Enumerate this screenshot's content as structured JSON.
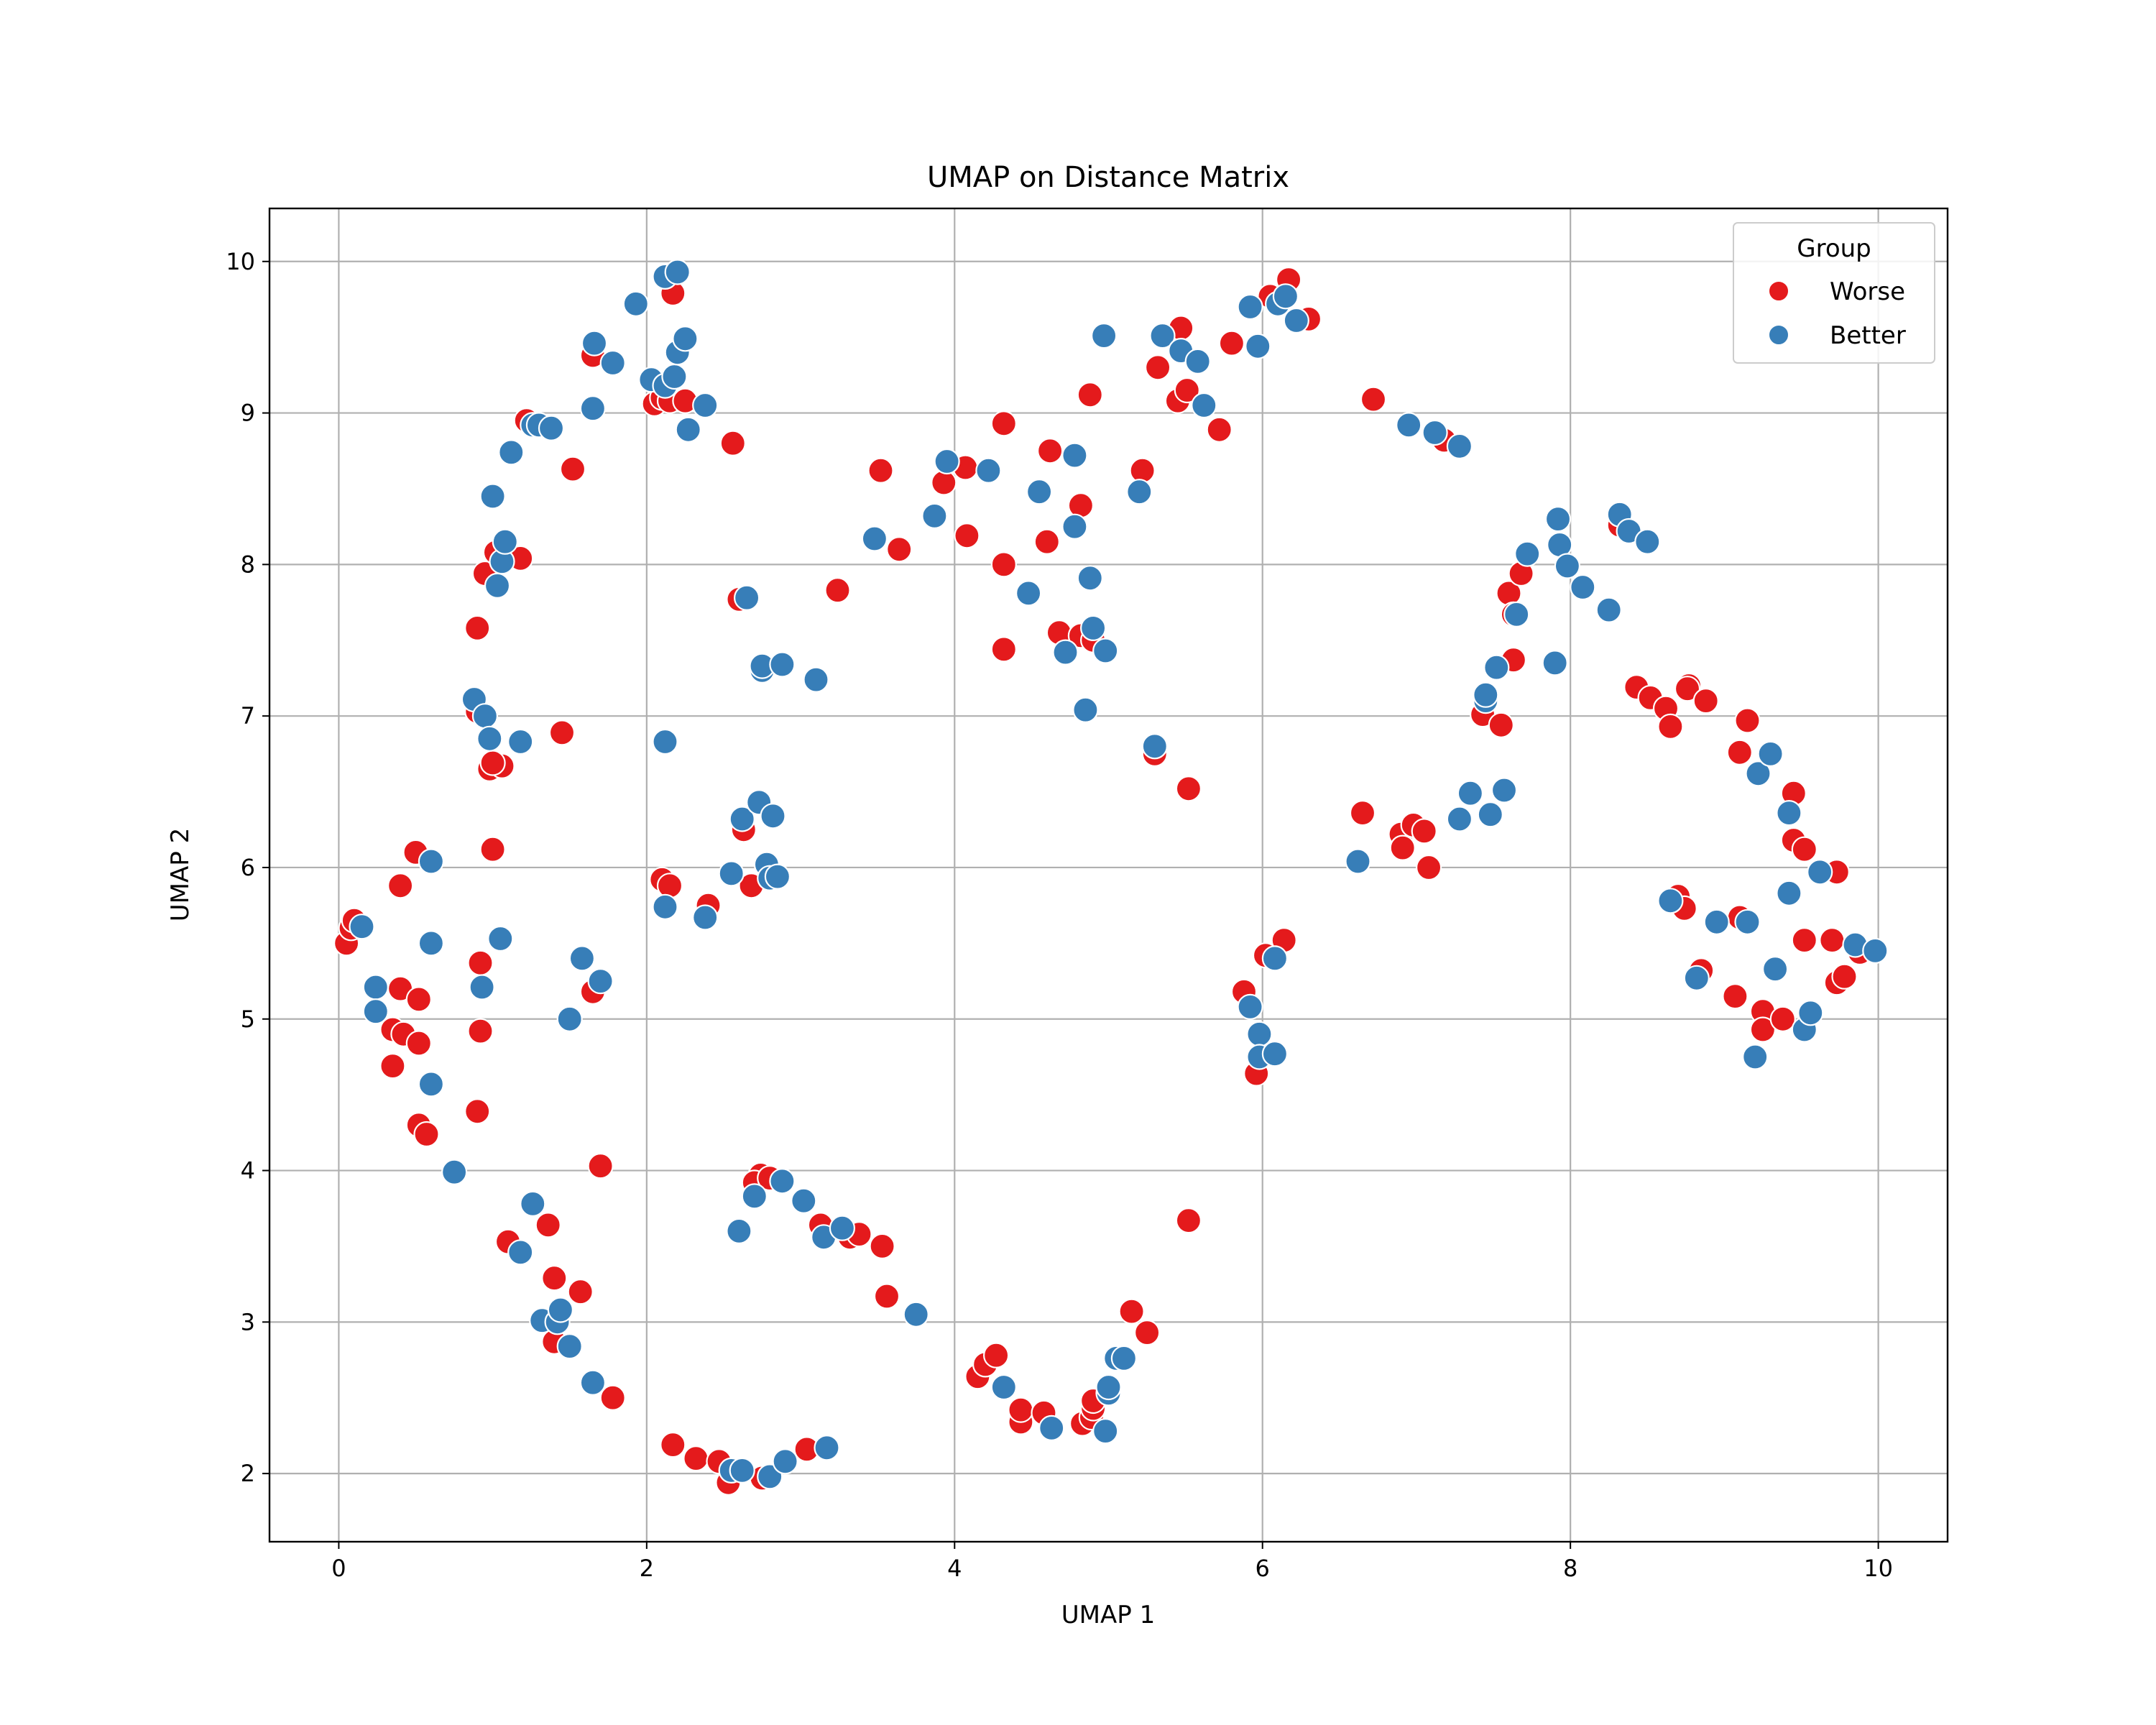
{
  "chart_data": {
    "type": "scatter",
    "title": "UMAP on Distance Matrix",
    "xlabel": "UMAP 1",
    "ylabel": "UMAP 2",
    "xlim": [
      -0.45,
      10.45
    ],
    "ylim": [
      1.55,
      10.35
    ],
    "xticks": [
      0,
      2,
      4,
      6,
      8,
      10
    ],
    "yticks": [
      2,
      3,
      4,
      5,
      6,
      7,
      8,
      9,
      10
    ],
    "grid": true,
    "legend": {
      "title": "Group",
      "position": "top-right"
    },
    "series": [
      {
        "name": "Worse",
        "color": "#e41a1c",
        "points": [
          [
            0.05,
            5.5
          ],
          [
            0.08,
            5.6
          ],
          [
            0.1,
            5.65
          ],
          [
            0.4,
            5.88
          ],
          [
            0.5,
            6.1
          ],
          [
            0.4,
            5.2
          ],
          [
            0.52,
            5.13
          ],
          [
            0.35,
            4.93
          ],
          [
            0.42,
            4.9
          ],
          [
            0.52,
            4.84
          ],
          [
            0.35,
            4.69
          ],
          [
            0.52,
            4.3
          ],
          [
            0.57,
            4.24
          ],
          [
            0.92,
            5.37
          ],
          [
            0.92,
            4.92
          ],
          [
            0.9,
            4.39
          ],
          [
            1.0,
            6.12
          ],
          [
            0.98,
            6.65
          ],
          [
            1.06,
            6.67
          ],
          [
            1.0,
            6.69
          ],
          [
            0.9,
            7.03
          ],
          [
            0.9,
            7.58
          ],
          [
            0.95,
            7.94
          ],
          [
            1.02,
            8.08
          ],
          [
            1.18,
            8.04
          ],
          [
            1.22,
            8.95
          ],
          [
            1.52,
            8.63
          ],
          [
            1.45,
            6.89
          ],
          [
            1.65,
            5.18
          ],
          [
            1.7,
            4.03
          ],
          [
            1.1,
            3.53
          ],
          [
            1.36,
            3.64
          ],
          [
            1.4,
            3.29
          ],
          [
            1.57,
            3.2
          ],
          [
            1.4,
            2.87
          ],
          [
            1.78,
            2.5
          ],
          [
            1.65,
            9.38
          ],
          [
            2.05,
            9.06
          ],
          [
            2.1,
            9.1
          ],
          [
            2.15,
            9.08
          ],
          [
            2.25,
            9.08
          ],
          [
            2.17,
            9.79
          ],
          [
            2.56,
            8.8
          ],
          [
            2.1,
            5.92
          ],
          [
            2.15,
            5.88
          ],
          [
            2.4,
            5.75
          ],
          [
            2.63,
            6.25
          ],
          [
            2.68,
            5.88
          ],
          [
            2.74,
            3.97
          ],
          [
            2.7,
            3.92
          ],
          [
            2.8,
            3.95
          ],
          [
            2.6,
            7.77
          ],
          [
            3.24,
            7.83
          ],
          [
            3.52,
            8.62
          ],
          [
            3.64,
            8.1
          ],
          [
            3.13,
            3.64
          ],
          [
            3.32,
            3.56
          ],
          [
            3.38,
            3.58
          ],
          [
            3.53,
            3.5
          ],
          [
            3.56,
            3.17
          ],
          [
            2.17,
            2.19
          ],
          [
            2.32,
            2.1
          ],
          [
            2.47,
            2.08
          ],
          [
            2.53,
            1.94
          ],
          [
            2.75,
            1.97
          ],
          [
            3.04,
            2.16
          ],
          [
            3.93,
            8.54
          ],
          [
            4.08,
            8.19
          ],
          [
            4.07,
            8.64
          ],
          [
            4.32,
            8.93
          ],
          [
            4.32,
            8.0
          ],
          [
            4.32,
            7.44
          ],
          [
            4.62,
            8.75
          ],
          [
            4.6,
            8.15
          ],
          [
            4.68,
            7.55
          ],
          [
            4.82,
            8.39
          ],
          [
            4.82,
            7.53
          ],
          [
            4.88,
            9.12
          ],
          [
            4.9,
            7.5
          ],
          [
            5.22,
            8.62
          ],
          [
            4.15,
            2.64
          ],
          [
            4.2,
            2.72
          ],
          [
            4.27,
            2.78
          ],
          [
            4.43,
            2.34
          ],
          [
            4.43,
            2.42
          ],
          [
            4.58,
            2.4
          ],
          [
            4.83,
            2.33
          ],
          [
            4.89,
            2.37
          ],
          [
            4.9,
            2.43
          ],
          [
            4.9,
            2.48
          ],
          [
            5.15,
            3.07
          ],
          [
            5.25,
            2.93
          ],
          [
            5.3,
            6.75
          ],
          [
            5.52,
            6.52
          ],
          [
            5.52,
            3.67
          ],
          [
            5.32,
            9.3
          ],
          [
            5.47,
            9.56
          ],
          [
            5.45,
            9.08
          ],
          [
            5.51,
            9.15
          ],
          [
            5.72,
            8.89
          ],
          [
            5.8,
            9.46
          ],
          [
            6.05,
            9.77
          ],
          [
            6.17,
            9.88
          ],
          [
            6.3,
            9.62
          ],
          [
            5.88,
            5.18
          ],
          [
            5.96,
            4.64
          ],
          [
            6.02,
            5.42
          ],
          [
            6.14,
            5.52
          ],
          [
            6.65,
            6.36
          ],
          [
            6.72,
            9.09
          ],
          [
            6.9,
            6.22
          ],
          [
            6.91,
            6.13
          ],
          [
            6.98,
            6.28
          ],
          [
            7.05,
            6.24
          ],
          [
            7.08,
            6.0
          ],
          [
            7.18,
            8.82
          ],
          [
            7.43,
            7.01
          ],
          [
            7.55,
            6.94
          ],
          [
            7.6,
            7.81
          ],
          [
            7.63,
            7.37
          ],
          [
            7.63,
            7.67
          ],
          [
            7.68,
            7.94
          ],
          [
            8.32,
            8.26
          ],
          [
            8.43,
            7.19
          ],
          [
            8.52,
            7.12
          ],
          [
            8.62,
            7.05
          ],
          [
            8.65,
            6.93
          ],
          [
            8.77,
            7.2
          ],
          [
            8.76,
            7.18
          ],
          [
            8.88,
            7.1
          ],
          [
            9.1,
            6.76
          ],
          [
            9.15,
            6.97
          ],
          [
            9.45,
            6.49
          ],
          [
            9.45,
            6.18
          ],
          [
            9.52,
            6.12
          ],
          [
            9.73,
            5.97
          ],
          [
            8.7,
            5.81
          ],
          [
            8.74,
            5.73
          ],
          [
            8.85,
            5.32
          ],
          [
            9.07,
            5.15
          ],
          [
            9.1,
            5.67
          ],
          [
            9.25,
            5.05
          ],
          [
            9.25,
            4.93
          ],
          [
            9.38,
            5.0
          ],
          [
            9.52,
            5.52
          ],
          [
            9.7,
            5.52
          ],
          [
            9.73,
            5.24
          ],
          [
            9.78,
            5.28
          ],
          [
            9.88,
            5.44
          ]
        ]
      },
      {
        "name": "Better",
        "color": "#377eb8",
        "points": [
          [
            0.15,
            5.61
          ],
          [
            0.24,
            5.21
          ],
          [
            0.24,
            5.05
          ],
          [
            0.6,
            6.04
          ],
          [
            0.6,
            5.5
          ],
          [
            0.6,
            4.57
          ],
          [
            0.75,
            3.99
          ],
          [
            0.88,
            7.11
          ],
          [
            0.95,
            7.0
          ],
          [
            0.98,
            6.85
          ],
          [
            0.93,
            5.21
          ],
          [
            1.05,
            5.53
          ],
          [
            1.0,
            8.45
          ],
          [
            1.03,
            7.86
          ],
          [
            1.06,
            8.02
          ],
          [
            1.08,
            8.15
          ],
          [
            1.12,
            8.74
          ],
          [
            1.18,
            6.83
          ],
          [
            1.26,
            8.92
          ],
          [
            1.3,
            8.92
          ],
          [
            1.38,
            8.9
          ],
          [
            1.5,
            5.0
          ],
          [
            1.58,
            5.4
          ],
          [
            1.7,
            5.25
          ],
          [
            1.26,
            3.78
          ],
          [
            1.18,
            3.46
          ],
          [
            1.32,
            3.01
          ],
          [
            1.42,
            3.0
          ],
          [
            1.44,
            3.08
          ],
          [
            1.5,
            2.84
          ],
          [
            1.65,
            2.6
          ],
          [
            1.65,
            9.03
          ],
          [
            1.66,
            9.46
          ],
          [
            1.78,
            9.33
          ],
          [
            1.93,
            9.72
          ],
          [
            2.03,
            9.22
          ],
          [
            2.12,
            9.18
          ],
          [
            2.12,
            9.9
          ],
          [
            2.2,
            9.93
          ],
          [
            2.18,
            9.24
          ],
          [
            2.2,
            9.4
          ],
          [
            2.25,
            9.49
          ],
          [
            2.27,
            8.89
          ],
          [
            2.38,
            9.05
          ],
          [
            2.12,
            6.83
          ],
          [
            2.12,
            5.74
          ],
          [
            2.38,
            5.67
          ],
          [
            2.55,
            5.96
          ],
          [
            2.62,
            6.32
          ],
          [
            2.73,
            6.43
          ],
          [
            2.82,
            6.34
          ],
          [
            2.78,
            6.02
          ],
          [
            2.8,
            5.93
          ],
          [
            2.85,
            5.94
          ],
          [
            2.65,
            7.78
          ],
          [
            2.75,
            7.3
          ],
          [
            2.75,
            7.33
          ],
          [
            2.88,
            7.34
          ],
          [
            3.1,
            7.24
          ],
          [
            2.6,
            3.6
          ],
          [
            2.7,
            3.83
          ],
          [
            2.88,
            3.93
          ],
          [
            3.02,
            3.8
          ],
          [
            3.15,
            3.56
          ],
          [
            3.27,
            3.62
          ],
          [
            3.75,
            3.05
          ],
          [
            2.55,
            2.02
          ],
          [
            2.62,
            2.02
          ],
          [
            2.8,
            1.98
          ],
          [
            2.9,
            2.08
          ],
          [
            3.17,
            2.17
          ],
          [
            3.48,
            8.17
          ],
          [
            3.87,
            8.32
          ],
          [
            3.95,
            8.68
          ],
          [
            4.22,
            8.62
          ],
          [
            4.48,
            7.81
          ],
          [
            4.55,
            8.48
          ],
          [
            4.72,
            7.42
          ],
          [
            4.78,
            8.72
          ],
          [
            4.78,
            8.25
          ],
          [
            4.85,
            7.04
          ],
          [
            4.88,
            7.91
          ],
          [
            4.9,
            7.58
          ],
          [
            4.97,
            9.51
          ],
          [
            4.98,
            7.43
          ],
          [
            5.2,
            8.48
          ],
          [
            5.3,
            6.8
          ],
          [
            4.32,
            2.57
          ],
          [
            4.63,
            2.3
          ],
          [
            4.98,
            2.28
          ],
          [
            5.0,
            2.53
          ],
          [
            5.0,
            2.57
          ],
          [
            5.05,
            2.76
          ],
          [
            5.1,
            2.76
          ],
          [
            5.35,
            9.51
          ],
          [
            5.47,
            9.41
          ],
          [
            5.58,
            9.34
          ],
          [
            5.62,
            9.05
          ],
          [
            5.92,
            9.7
          ],
          [
            5.97,
            9.44
          ],
          [
            6.1,
            9.72
          ],
          [
            6.15,
            9.77
          ],
          [
            6.22,
            9.61
          ],
          [
            5.92,
            5.08
          ],
          [
            5.98,
            4.9
          ],
          [
            5.98,
            4.75
          ],
          [
            6.08,
            4.77
          ],
          [
            6.08,
            5.4
          ],
          [
            6.62,
            6.04
          ],
          [
            6.95,
            8.92
          ],
          [
            7.12,
            8.87
          ],
          [
            7.28,
            8.78
          ],
          [
            7.28,
            6.32
          ],
          [
            7.35,
            6.49
          ],
          [
            7.48,
            6.35
          ],
          [
            7.52,
            7.32
          ],
          [
            7.57,
            6.51
          ],
          [
            7.45,
            7.1
          ],
          [
            7.45,
            7.14
          ],
          [
            7.65,
            7.67
          ],
          [
            7.72,
            8.07
          ],
          [
            7.9,
            7.35
          ],
          [
            7.92,
            8.3
          ],
          [
            7.93,
            8.13
          ],
          [
            7.98,
            7.99
          ],
          [
            8.08,
            7.85
          ],
          [
            8.25,
            7.7
          ],
          [
            8.32,
            8.33
          ],
          [
            8.38,
            8.22
          ],
          [
            8.5,
            8.15
          ],
          [
            8.65,
            5.78
          ],
          [
            8.82,
            5.27
          ],
          [
            8.95,
            5.64
          ],
          [
            9.15,
            5.64
          ],
          [
            9.2,
            4.75
          ],
          [
            9.22,
            6.62
          ],
          [
            9.3,
            6.75
          ],
          [
            9.33,
            5.33
          ],
          [
            9.42,
            6.36
          ],
          [
            9.42,
            5.83
          ],
          [
            9.52,
            4.93
          ],
          [
            9.56,
            5.04
          ],
          [
            9.62,
            5.97
          ],
          [
            9.85,
            5.49
          ],
          [
            9.98,
            5.45
          ]
        ]
      }
    ]
  }
}
